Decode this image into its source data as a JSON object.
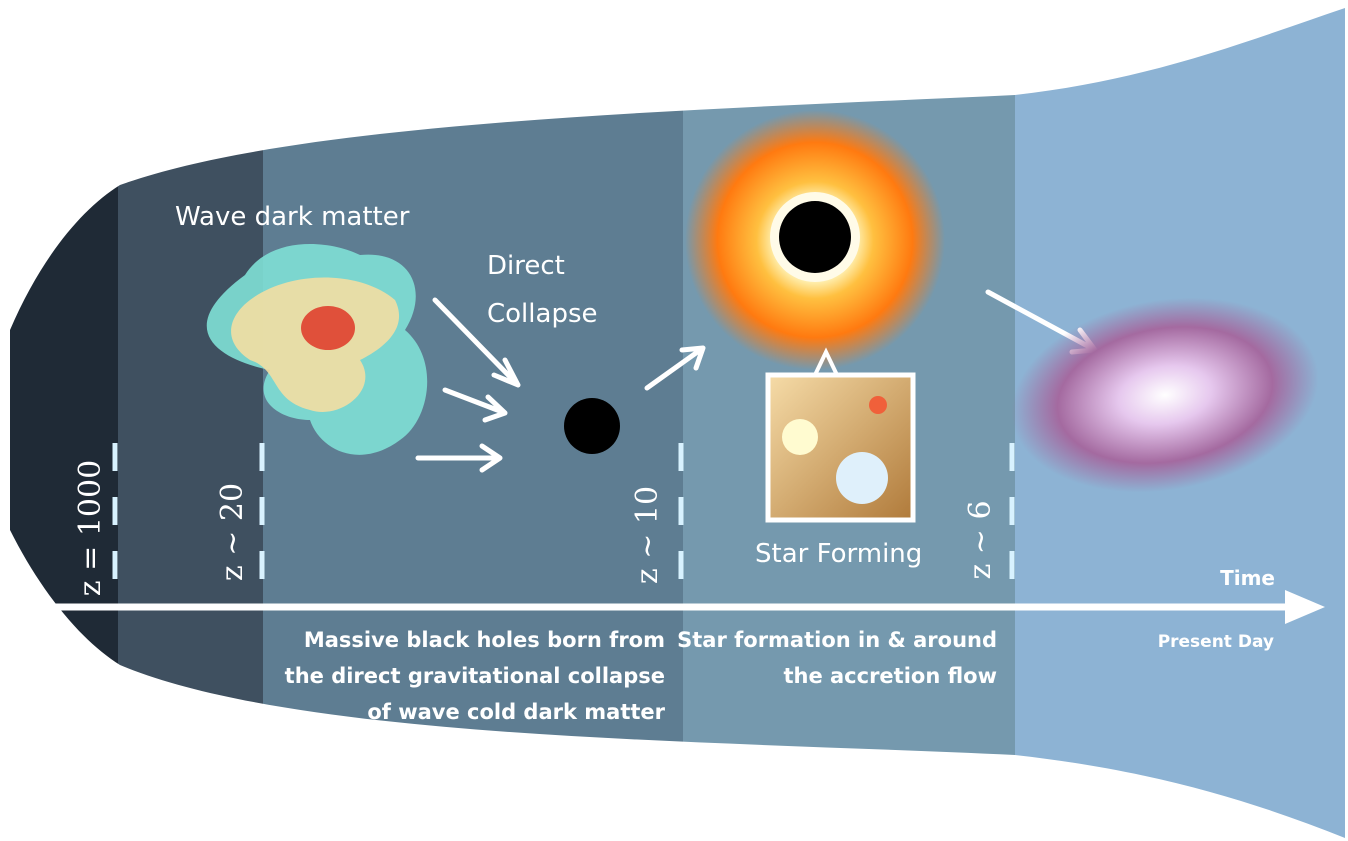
{
  "annotations": {
    "wave_dark_matter": "Wave dark matter",
    "direct_collapse": [
      "Direct",
      "Collapse"
    ],
    "star_forming": "Star Forming"
  },
  "redshifts": [
    "z = 1000",
    "z ~ 20",
    "z ~ 10",
    "z ~ 6"
  ],
  "captions": [
    [
      "Massive black holes  born from",
      "the direct gravitational collapse",
      "of wave cold dark matter"
    ],
    [
      "Star formation in & around",
      "the accretion flow"
    ]
  ],
  "axis": {
    "label": "Time",
    "end": "Present Day"
  }
}
